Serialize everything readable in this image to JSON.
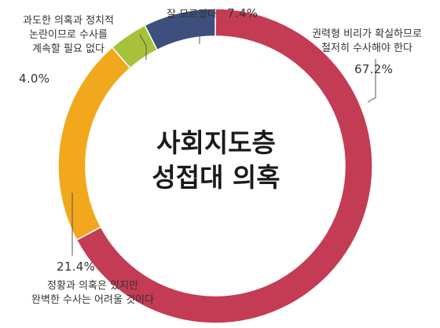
{
  "chart_data": {
    "type": "pie",
    "title": "사회지도층 성접대 의혹",
    "title_lines": [
      "사회지도층",
      "성접대 의혹"
    ],
    "slices": [
      {
        "label": "권력형 비리가 확실하므로 철저히 수사해야 한다",
        "label_lines": [
          "권력형 비리가 확실하므로",
          "철저히 수사해야 한다"
        ],
        "value": 67.2,
        "value_label": "67.2%",
        "color": "#c43b54"
      },
      {
        "label": "정황과 의혹은 있지만 완벽한 수사는 어려울 것이다",
        "label_lines": [
          "정황과 의혹은 있지만",
          "완벽한 수사는 어려울 것이다"
        ],
        "value": 21.4,
        "value_label": "21.4%",
        "color": "#f2a81d"
      },
      {
        "label": "과도한 의혹과 정치적 논란이므로 수사를 계속할 필요 없다",
        "label_lines": [
          "과도한 의혹과 정치적",
          "논란이므로 수사를",
          "계속할 필요 없다"
        ],
        "value": 4.0,
        "value_label": "4.0%",
        "color": "#a6c23a"
      },
      {
        "label": "잘 모르겠다",
        "label_lines": [
          "잘 모르겠다"
        ],
        "value": 7.4,
        "value_label": "7.4%",
        "color": "#3d4f7c"
      }
    ],
    "legend": "none",
    "grid": false
  }
}
